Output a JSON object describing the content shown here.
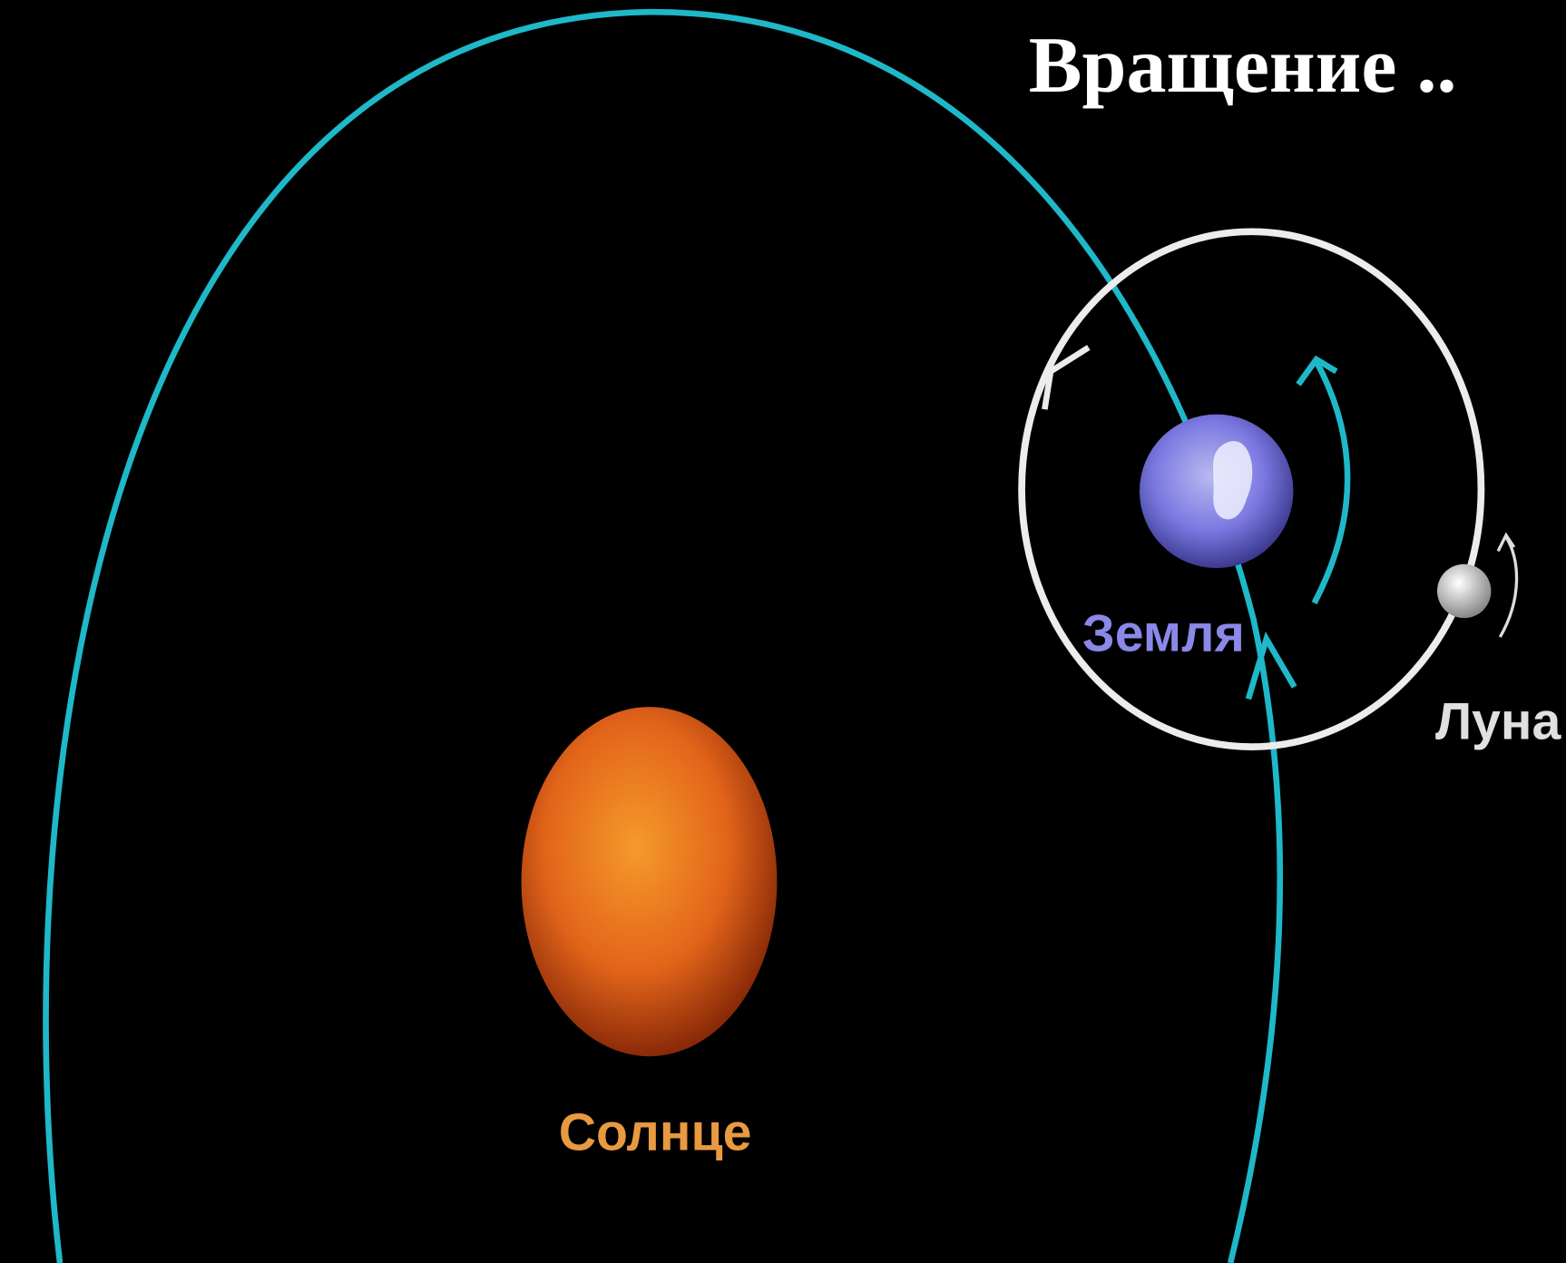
{
  "title": "Вращение ..",
  "labels": {
    "sun": "Солнце",
    "earth": "Земля",
    "moon": "Луна"
  }
}
